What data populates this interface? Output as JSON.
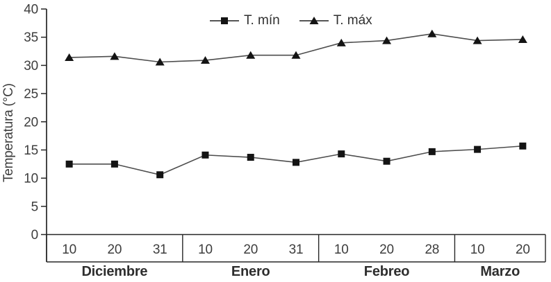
{
  "chart_data": {
    "type": "line",
    "title": "",
    "xlabel": "",
    "ylabel": "Temperatura (°C)",
    "ylim": [
      0,
      40
    ],
    "yticks": [
      0,
      5,
      10,
      15,
      20,
      25,
      30,
      35,
      40
    ],
    "grid": false,
    "legend_position": "top-center",
    "month_groups": [
      {
        "label": "Diciembre",
        "days": [
          "10",
          "20",
          "31"
        ]
      },
      {
        "label": "Enero",
        "days": [
          "10",
          "20",
          "31"
        ]
      },
      {
        "label": "Febreo",
        "days": [
          "10",
          "20",
          "28"
        ]
      },
      {
        "label": "Marzo",
        "days": [
          "10",
          "20"
        ]
      }
    ],
    "series": [
      {
        "name": "T. mín",
        "marker": "square",
        "values": [
          12.5,
          12.5,
          10.6,
          14.1,
          13.7,
          12.8,
          14.3,
          13.0,
          14.7,
          15.1,
          15.7
        ]
      },
      {
        "name": "T. máx",
        "marker": "triangle",
        "values": [
          31.4,
          31.6,
          30.6,
          30.9,
          31.8,
          31.8,
          34.0,
          34.4,
          35.6,
          34.4,
          34.6
        ]
      }
    ],
    "colors": {
      "line": "#4d4d4d",
      "marker": "#141414",
      "axis": "#262626",
      "text": "#3d3d3d"
    }
  }
}
